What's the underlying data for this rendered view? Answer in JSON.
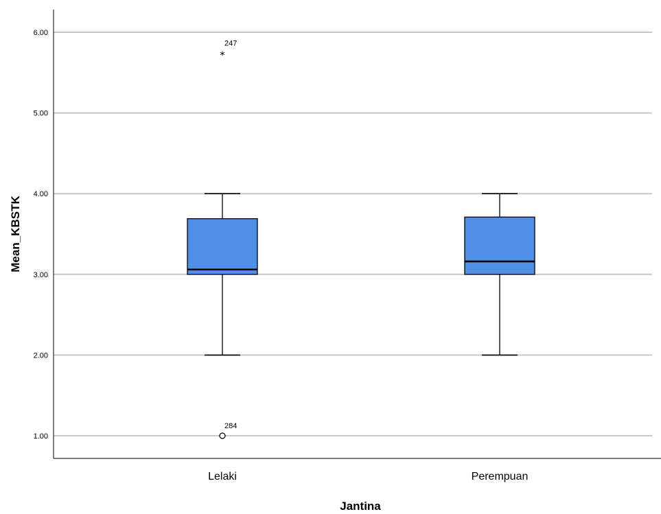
{
  "chart_data": {
    "type": "boxplot",
    "title": "",
    "xlabel": "Jantina",
    "ylabel": "Mean_KBSTK",
    "ylim": [
      0.75,
      6.28
    ],
    "yticks": [
      "1.00",
      "2.00",
      "3.00",
      "4.00",
      "5.00",
      "6.00"
    ],
    "grid": true,
    "box_color": "#4f8fe4",
    "categories": [
      "Lelaki",
      "Perempuan"
    ],
    "boxes": [
      {
        "category": "Lelaki",
        "whisker_low": 2.0,
        "q1": 3.0,
        "median": 3.06,
        "q3": 3.69,
        "whisker_high": 4.0,
        "outliers": [
          {
            "value": 5.74,
            "label": "247",
            "marker": "star"
          },
          {
            "value": 1.0,
            "label": "284",
            "marker": "circle"
          }
        ]
      },
      {
        "category": "Perempuan",
        "whisker_low": 2.0,
        "q1": 3.0,
        "median": 3.16,
        "q3": 3.71,
        "whisker_high": 4.0,
        "outliers": []
      }
    ]
  }
}
